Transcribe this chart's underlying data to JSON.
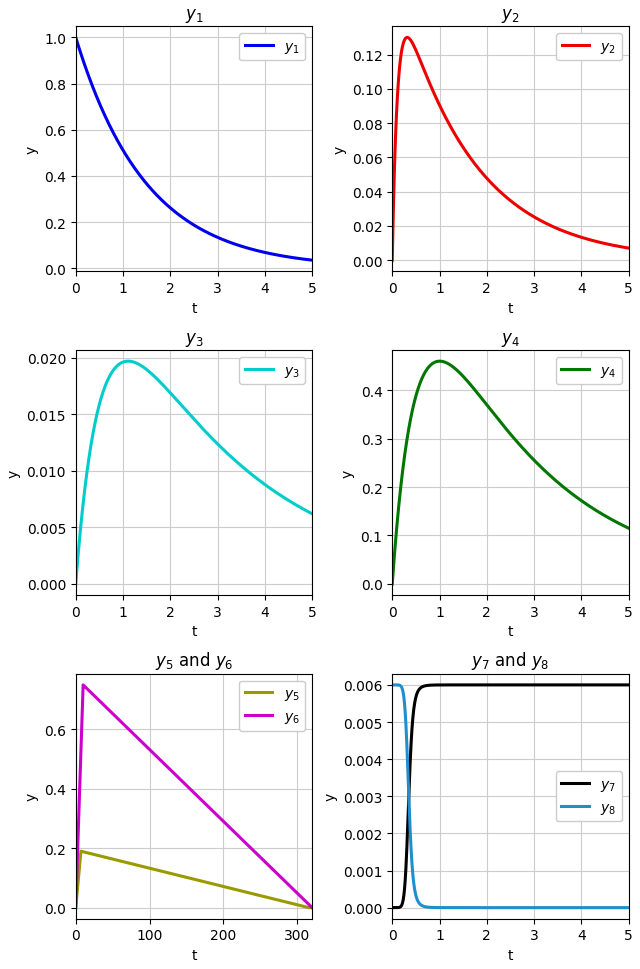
{
  "title1": "$y_1$",
  "title2": "$y_2$",
  "title3": "$y_3$",
  "title4": "$y_4$",
  "title5": "$y_5$ and $y_6$",
  "title6": "$y_7$ and $y_8$",
  "ylabel": "y",
  "xlabel": "t",
  "color1": "#0000EE",
  "color2": "#EE0000",
  "color3": "#00CCCC",
  "color4": "#007700",
  "color5": "#999900",
  "color6": "#CC00CC",
  "color7": "#000000",
  "color8": "#1E8FCC",
  "legend1": "$y_1$",
  "legend2": "$y_2$",
  "legend3": "$y_3$",
  "legend4": "$y_4$",
  "legend5": "$y_5$",
  "legend6": "$y_6$",
  "legend7": "$y_7$",
  "legend8": "$y_8$",
  "linewidth": 2.2,
  "grid_color": "#CCCCCC"
}
